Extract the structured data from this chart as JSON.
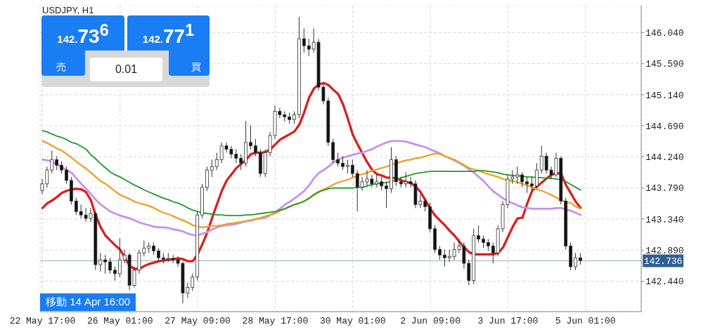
{
  "chart_data": {
    "type": "candlestick",
    "title": "USDJPY, H1",
    "annotations": [
      "142.73$^{6}$",
      "売",
      "142.77$^{1}$",
      "買",
      "0.01",
      "移動 14 Apr 16:00"
    ],
    "categories": [
      "22 May 17:00",
      null,
      null,
      null,
      null,
      null,
      null,
      null,
      null,
      null,
      null,
      null,
      null,
      null,
      null,
      null,
      "26 May 01:00",
      null,
      null,
      null,
      null,
      null,
      null,
      null,
      null,
      null,
      null,
      null,
      null,
      null,
      null,
      null,
      "27 May 09:00",
      null,
      null,
      null,
      null,
      null,
      null,
      null,
      null,
      null,
      null,
      null,
      null,
      null,
      null,
      null,
      "28 May 17:00",
      null,
      null,
      null,
      null,
      null,
      null,
      null,
      null,
      null,
      null,
      null,
      null,
      null,
      null,
      null,
      "30 May 01:00",
      null,
      null,
      null,
      null,
      null,
      null,
      null,
      null,
      null,
      null,
      null,
      null,
      null,
      null,
      null,
      "2 Jun 09:00",
      null,
      null,
      null,
      null,
      null,
      null,
      null,
      null,
      null,
      null,
      null,
      null,
      null,
      null,
      null,
      "3 Jun 17:00",
      null,
      null,
      null,
      null,
      null,
      null,
      null,
      null,
      null,
      null,
      null,
      null,
      null,
      null,
      null,
      "5 Jun 01:00",
      null,
      null,
      null,
      null,
      null,
      null,
      null,
      null,
      null,
      null,
      null
    ],
    "ohlc": [
      [
        143.75,
        143.92,
        143.7,
        143.85
      ],
      [
        143.85,
        144.1,
        143.8,
        144.05
      ],
      [
        144.05,
        144.33,
        144.0,
        144.2
      ],
      [
        144.2,
        144.25,
        144.05,
        144.12
      ],
      [
        144.12,
        144.18,
        144.0,
        144.05
      ],
      [
        144.05,
        144.1,
        143.85,
        143.9
      ],
      [
        143.9,
        143.95,
        143.55,
        143.6
      ],
      [
        143.6,
        143.65,
        143.4,
        143.45
      ],
      [
        143.45,
        143.55,
        143.35,
        143.4
      ],
      [
        143.4,
        143.5,
        143.3,
        143.35
      ],
      [
        143.35,
        143.5,
        143.3,
        143.42
      ],
      [
        143.42,
        143.45,
        142.6,
        142.68
      ],
      [
        142.68,
        142.85,
        142.58,
        142.75
      ],
      [
        142.75,
        142.82,
        142.55,
        142.72
      ],
      [
        142.72,
        142.78,
        142.55,
        142.6
      ],
      [
        142.6,
        142.65,
        142.45,
        142.55
      ],
      [
        142.55,
        143.06,
        142.5,
        142.75
      ],
      [
        142.75,
        142.9,
        142.7,
        142.82
      ],
      [
        142.82,
        142.85,
        142.31,
        142.38
      ],
      [
        142.38,
        142.65,
        142.35,
        142.6
      ],
      [
        142.6,
        142.9,
        142.55,
        142.85
      ],
      [
        142.85,
        143.03,
        142.8,
        142.92
      ],
      [
        142.92,
        143.0,
        142.85,
        142.95
      ],
      [
        142.95,
        143.0,
        142.82,
        142.88
      ],
      [
        142.88,
        142.92,
        142.72,
        142.78
      ],
      [
        142.78,
        142.85,
        142.7,
        142.76
      ],
      [
        142.76,
        142.85,
        142.72,
        142.77
      ],
      [
        142.77,
        142.82,
        142.7,
        142.75
      ],
      [
        142.75,
        142.8,
        142.65,
        142.7
      ],
      [
        142.7,
        142.72,
        142.12,
        142.27
      ],
      [
        142.27,
        142.42,
        142.2,
        142.35
      ],
      [
        142.35,
        142.55,
        142.3,
        142.5
      ],
      [
        142.5,
        143.45,
        142.45,
        143.4
      ],
      [
        143.4,
        143.85,
        143.35,
        143.8
      ],
      [
        143.8,
        144.1,
        143.75,
        144.05
      ],
      [
        144.05,
        144.2,
        143.95,
        144.1
      ],
      [
        144.1,
        144.3,
        144.05,
        144.2
      ],
      [
        144.2,
        144.45,
        144.15,
        144.4
      ],
      [
        144.4,
        144.45,
        144.3,
        144.35
      ],
      [
        144.35,
        144.4,
        144.22,
        144.28
      ],
      [
        144.28,
        144.35,
        144.15,
        144.22
      ],
      [
        144.22,
        144.28,
        144.05,
        144.15
      ],
      [
        144.15,
        144.76,
        144.1,
        144.45
      ],
      [
        144.45,
        144.7,
        144.35,
        144.4
      ],
      [
        144.4,
        144.5,
        144.25,
        144.3
      ],
      [
        144.3,
        144.35,
        143.95,
        144.0
      ],
      [
        144.0,
        144.35,
        143.95,
        144.3
      ],
      [
        144.3,
        144.6,
        144.25,
        144.55
      ],
      [
        144.55,
        144.98,
        144.5,
        144.9
      ],
      [
        144.9,
        144.95,
        144.8,
        144.85
      ],
      [
        144.85,
        144.9,
        144.75,
        144.82
      ],
      [
        144.82,
        144.88,
        144.72,
        144.78
      ],
      [
        144.78,
        144.9,
        144.72,
        144.85
      ],
      [
        144.85,
        146.27,
        144.8,
        145.95
      ],
      [
        145.95,
        146.1,
        145.75,
        145.85
      ],
      [
        145.85,
        145.95,
        145.7,
        145.8
      ],
      [
        145.8,
        146.1,
        145.75,
        145.9
      ],
      [
        145.9,
        145.95,
        145.2,
        145.25
      ],
      [
        145.25,
        145.3,
        145.0,
        145.05
      ],
      [
        145.05,
        145.1,
        144.4,
        144.45
      ],
      [
        144.45,
        144.5,
        144.15,
        144.2
      ],
      [
        144.2,
        144.3,
        144.1,
        144.15
      ],
      [
        144.15,
        144.25,
        144.05,
        144.1
      ],
      [
        144.1,
        144.2,
        144.0,
        144.12
      ],
      [
        144.12,
        144.2,
        143.95,
        144.0
      ],
      [
        144.0,
        144.05,
        143.45,
        143.8
      ],
      [
        143.8,
        143.95,
        143.75,
        143.88
      ],
      [
        143.88,
        144.05,
        143.82,
        143.92
      ],
      [
        143.92,
        143.98,
        143.8,
        143.85
      ],
      [
        143.85,
        144.0,
        143.8,
        143.88
      ],
      [
        143.88,
        143.95,
        143.75,
        143.82
      ],
      [
        143.82,
        143.88,
        143.5,
        143.78
      ],
      [
        143.78,
        144.38,
        143.72,
        144.2
      ],
      [
        144.2,
        144.25,
        143.82,
        143.88
      ],
      [
        143.88,
        143.95,
        143.8,
        143.85
      ],
      [
        143.85,
        144.02,
        143.8,
        143.88
      ],
      [
        143.88,
        143.95,
        143.8,
        143.85
      ],
      [
        143.85,
        143.9,
        143.5,
        143.55
      ],
      [
        143.55,
        143.7,
        143.5,
        143.6
      ],
      [
        143.6,
        143.65,
        143.45,
        143.52
      ],
      [
        143.52,
        143.58,
        143.15,
        143.2
      ],
      [
        143.2,
        143.25,
        142.85,
        142.9
      ],
      [
        142.9,
        142.95,
        142.75,
        142.82
      ],
      [
        142.82,
        142.9,
        142.65,
        142.78
      ],
      [
        142.78,
        142.9,
        142.72,
        142.8
      ],
      [
        142.8,
        143.0,
        142.75,
        142.9
      ],
      [
        142.9,
        143.05,
        142.85,
        142.95
      ],
      [
        142.95,
        143.0,
        142.62,
        142.7
      ],
      [
        142.7,
        142.75,
        142.38,
        142.45
      ],
      [
        142.45,
        143.2,
        142.4,
        143.1
      ],
      [
        143.1,
        143.25,
        143.0,
        143.05
      ],
      [
        143.05,
        143.1,
        142.92,
        143.0
      ],
      [
        143.0,
        143.05,
        142.88,
        142.95
      ],
      [
        142.95,
        143.0,
        142.7,
        142.85
      ],
      [
        142.85,
        143.25,
        142.8,
        143.2
      ],
      [
        143.2,
        143.6,
        143.15,
        143.55
      ],
      [
        143.55,
        143.98,
        143.5,
        143.92
      ],
      [
        143.92,
        144.05,
        143.85,
        143.95
      ],
      [
        143.95,
        144.1,
        143.85,
        143.98
      ],
      [
        143.98,
        144.02,
        143.8,
        143.88
      ],
      [
        143.88,
        143.95,
        143.72,
        143.85
      ],
      [
        143.85,
        143.95,
        143.75,
        143.82
      ],
      [
        143.82,
        144.15,
        143.78,
        144.05
      ],
      [
        144.05,
        144.4,
        144.0,
        144.25
      ],
      [
        144.25,
        144.3,
        144.0,
        144.05
      ],
      [
        144.05,
        144.1,
        143.92,
        143.98
      ],
      [
        143.98,
        144.3,
        143.95,
        144.22
      ],
      [
        144.22,
        144.25,
        143.55,
        143.6
      ],
      [
        143.6,
        143.65,
        142.9,
        142.95
      ],
      [
        142.95,
        143.0,
        142.6,
        142.65
      ],
      [
        142.65,
        142.85,
        142.6,
        142.78
      ],
      [
        142.78,
        142.85,
        142.68,
        142.74
      ],
      null,
      null,
      null,
      null,
      null,
      null,
      null,
      null,
      null,
      null,
      null,
      null
    ],
    "series": [
      {
        "type": "line",
        "color": "#d8201f",
        "values": [
          143.5,
          143.57,
          143.61,
          143.66,
          143.72,
          143.75,
          143.77,
          143.78,
          143.77,
          143.73,
          143.61,
          143.39,
          143.22,
          143.1,
          143.03,
          142.96,
          142.9,
          142.78,
          142.66,
          142.62,
          142.62,
          142.66,
          142.69,
          142.71,
          142.73,
          142.74,
          142.75,
          142.76,
          142.77,
          142.76,
          142.73,
          142.73,
          142.83,
          142.98,
          143.15,
          143.36,
          143.56,
          143.75,
          143.9,
          143.99,
          144.08,
          144.14,
          144.2,
          144.28,
          144.3,
          144.3,
          144.31,
          144.35,
          144.42,
          144.49,
          144.53,
          144.57,
          144.61,
          144.71,
          144.89,
          145.1,
          145.23,
          145.29,
          145.31,
          145.28,
          145.21,
          145.15,
          145.0,
          144.79,
          144.56,
          144.42,
          144.29,
          144.16,
          144.05,
          143.99,
          143.97,
          143.94,
          143.94,
          143.93,
          143.9,
          143.88,
          143.86,
          143.81,
          143.73,
          143.61,
          143.49,
          143.39,
          143.32,
          143.25,
          143.17,
          143.1,
          143.01,
          142.93,
          142.86,
          142.83,
          142.83,
          142.83,
          142.83,
          142.83,
          142.85,
          142.93,
          143.08,
          143.23,
          143.35,
          143.36,
          143.57,
          143.75,
          143.81,
          143.87,
          143.93,
          143.98,
          144.01,
          143.99,
          143.83,
          143.71,
          143.59,
          143.5,
          null,
          null,
          null,
          null,
          null,
          null,
          null,
          null,
          null,
          null,
          null,
          null
        ]
      },
      {
        "type": "line",
        "color": "#c792ee",
        "values": [
          144.2,
          144.19,
          144.17,
          144.13,
          144.09,
          144.05,
          144.01,
          143.93,
          143.85,
          143.78,
          143.7,
          143.62,
          143.55,
          143.5,
          143.45,
          143.42,
          143.39,
          143.37,
          143.35,
          143.32,
          143.29,
          143.27,
          143.25,
          143.23,
          143.22,
          143.22,
          143.21,
          143.19,
          143.18,
          143.16,
          143.13,
          143.11,
          143.1,
          143.13,
          143.15,
          143.19,
          143.22,
          143.24,
          143.25,
          143.26,
          143.27,
          143.29,
          143.31,
          143.32,
          143.34,
          143.35,
          143.36,
          143.4,
          143.44,
          143.49,
          143.55,
          143.59,
          143.64,
          143.69,
          143.75,
          143.83,
          143.93,
          144.01,
          144.05,
          144.1,
          144.16,
          144.2,
          144.23,
          144.25,
          144.27,
          144.29,
          144.3,
          144.33,
          144.35,
          144.39,
          144.42,
          144.45,
          144.47,
          144.47,
          144.47,
          144.46,
          144.44,
          144.42,
          144.4,
          144.38,
          144.35,
          144.32,
          144.29,
          144.25,
          144.22,
          144.19,
          144.15,
          144.11,
          144.06,
          144.01,
          143.95,
          143.89,
          143.81,
          143.74,
          143.69,
          143.64,
          143.6,
          143.57,
          143.54,
          143.51,
          143.5,
          143.49,
          143.49,
          143.49,
          143.49,
          143.49,
          143.5,
          143.5,
          143.48,
          143.46,
          143.43,
          143.4,
          null,
          null,
          null,
          null,
          null,
          null,
          null,
          null,
          null,
          null,
          null,
          null
        ]
      },
      {
        "type": "line",
        "color": "#f0a01e",
        "values": [
          144.47,
          144.44,
          144.4,
          144.36,
          144.33,
          144.28,
          144.23,
          144.17,
          144.12,
          144.07,
          144.01,
          143.95,
          143.89,
          143.85,
          143.8,
          143.74,
          143.69,
          143.66,
          143.63,
          143.59,
          143.57,
          143.55,
          143.53,
          143.5,
          143.46,
          143.43,
          143.41,
          143.38,
          143.35,
          143.32,
          143.29,
          143.25,
          143.23,
          143.22,
          143.23,
          143.24,
          143.24,
          143.25,
          143.27,
          143.28,
          143.29,
          143.3,
          143.31,
          143.32,
          143.34,
          143.36,
          143.38,
          143.4,
          143.42,
          143.46,
          143.49,
          143.52,
          143.55,
          143.57,
          143.6,
          143.64,
          143.7,
          143.74,
          143.77,
          143.8,
          143.84,
          143.87,
          143.89,
          143.91,
          143.94,
          143.97,
          143.99,
          144.01,
          144.04,
          144.06,
          144.08,
          144.1,
          144.13,
          144.15,
          144.17,
          144.19,
          144.2,
          144.22,
          144.23,
          144.25,
          144.27,
          144.29,
          144.28,
          144.25,
          144.22,
          144.2,
          144.16,
          144.12,
          144.08,
          144.06,
          144.04,
          144.01,
          143.99,
          143.97,
          143.95,
          143.92,
          143.9,
          143.89,
          143.87,
          143.85,
          143.83,
          143.8,
          143.77,
          143.75,
          143.72,
          143.69,
          143.65,
          143.61,
          143.59,
          143.57,
          143.52,
          143.49,
          null,
          null,
          null,
          null,
          null,
          null,
          null,
          null,
          null,
          null,
          null,
          null
        ]
      },
      {
        "type": "line",
        "color": "#1e9a2b",
        "values": [
          144.62,
          144.6,
          144.57,
          144.54,
          144.52,
          144.49,
          144.45,
          144.43,
          144.39,
          144.35,
          144.27,
          144.21,
          144.14,
          144.08,
          144.02,
          143.98,
          143.95,
          143.91,
          143.87,
          143.83,
          143.8,
          143.76,
          143.73,
          143.7,
          143.67,
          143.64,
          143.62,
          143.59,
          143.57,
          143.54,
          143.5,
          143.47,
          143.45,
          143.43,
          143.42,
          143.41,
          143.4,
          143.4,
          143.39,
          143.39,
          143.39,
          143.39,
          143.4,
          143.4,
          143.41,
          143.42,
          143.43,
          143.44,
          143.45,
          143.47,
          143.49,
          143.52,
          143.55,
          143.57,
          143.6,
          143.64,
          143.69,
          143.73,
          143.76,
          143.78,
          143.79,
          143.79,
          143.79,
          143.79,
          143.79,
          143.8,
          143.8,
          143.82,
          143.84,
          143.85,
          143.86,
          143.87,
          143.88,
          143.91,
          143.94,
          143.96,
          143.98,
          144.0,
          144.01,
          144.02,
          144.03,
          144.03,
          144.03,
          144.03,
          144.03,
          144.03,
          144.03,
          144.03,
          144.03,
          144.03,
          144.04,
          144.04,
          144.03,
          144.02,
          144.01,
          143.99,
          143.98,
          143.97,
          143.97,
          143.96,
          143.95,
          143.95,
          143.94,
          143.94,
          143.93,
          143.93,
          143.92,
          143.91,
          143.88,
          143.84,
          143.8,
          143.76,
          null,
          null,
          null,
          null,
          null,
          null,
          null,
          null,
          null,
          null,
          null,
          null
        ]
      }
    ],
    "ylim": [
      142.0,
      146.43
    ],
    "yticks": [
      {
        "value": 142.44,
        "label": "142.440"
      },
      {
        "value": 142.89,
        "label": "142.890"
      },
      {
        "value": 143.34,
        "label": "143.340"
      },
      {
        "value": 143.79,
        "label": "143.790"
      },
      {
        "value": 144.24,
        "label": "144.240"
      },
      {
        "value": 144.69,
        "label": "144.690"
      },
      {
        "value": 145.14,
        "label": "145.140"
      },
      {
        "value": 145.59,
        "label": "145.590"
      },
      {
        "value": 146.04,
        "label": "146.040"
      }
    ],
    "grid": true,
    "ref_lines": [
      {
        "axis": "y",
        "value": 142.736,
        "label": "142.736",
        "color": "#b7c4cc"
      }
    ]
  }
}
